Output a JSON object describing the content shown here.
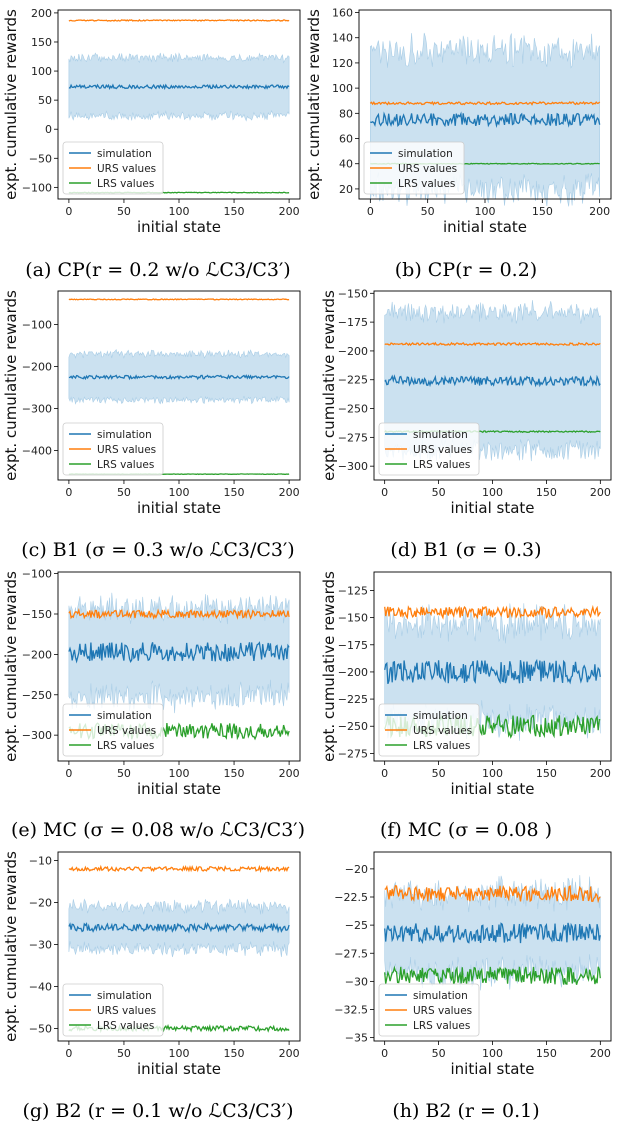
{
  "colors": {
    "simulation": "#1f77b4",
    "urs": "#ff7f0e",
    "lrs": "#2ca02c",
    "band": "#a9cde6"
  },
  "chart_data": [
    {
      "type": "line",
      "caption": "(a) CP(r = 0.2 w/o ℒC3/C3′)",
      "xlabel": "initial state",
      "ylabel": "expt. cumulative rewards",
      "xlim": [
        0,
        200
      ],
      "ylim": [
        -120,
        205
      ],
      "xticks": [
        0,
        50,
        100,
        150,
        200
      ],
      "yticks": [
        -100,
        -50,
        0,
        50,
        100,
        150,
        200
      ],
      "legend": "lower-left",
      "series": [
        {
          "name": "simulation",
          "mean": 73,
          "noise": 3,
          "band": 50,
          "bandNoise": 6
        },
        {
          "name": "URS values",
          "mean": 187,
          "noise": 1
        },
        {
          "name": "LRS values",
          "mean": -109,
          "noise": 0.6
        }
      ]
    },
    {
      "type": "line",
      "caption": "(b) CP(r = 0.2)",
      "xlabel": "initial state",
      "ylabel": "expt. cumulative rewards",
      "xlim": [
        0,
        200
      ],
      "ylim": [
        12,
        162
      ],
      "xticks": [
        0,
        50,
        100,
        150,
        200
      ],
      "yticks": [
        20,
        40,
        60,
        80,
        100,
        120,
        140,
        160
      ],
      "legend": "lower-left",
      "series": [
        {
          "name": "simulation",
          "mean": 75,
          "noise": 5,
          "band": 55,
          "bandNoise": 10
        },
        {
          "name": "URS values",
          "mean": 88,
          "noise": 1
        },
        {
          "name": "LRS values",
          "mean": 40,
          "noise": 0.3
        }
      ]
    },
    {
      "type": "line",
      "caption": "(c) B1 (σ = 0.3 w/o ℒC3/C3′)",
      "xlabel": "initial state",
      "ylabel": "expt. cumulative rewards",
      "xlim": [
        0,
        200
      ],
      "ylim": [
        -470,
        -20
      ],
      "xticks": [
        0,
        50,
        100,
        150,
        200
      ],
      "yticks": [
        -400,
        -300,
        -200,
        -100
      ],
      "legend": "lower-left",
      "series": [
        {
          "name": "simulation",
          "mean": -225,
          "noise": 4,
          "band": 55,
          "bandNoise": 7
        },
        {
          "name": "URS values",
          "mean": -40,
          "noise": 1
        },
        {
          "name": "LRS values",
          "mean": -456,
          "noise": 0.6
        }
      ]
    },
    {
      "type": "line",
      "caption": "(d) B1 (σ = 0.3)",
      "xlabel": "initial state",
      "ylabel": "expt. cumulative rewards",
      "xlim": [
        0,
        200
      ],
      "ylim": [
        -312,
        -148
      ],
      "xticks": [
        0,
        50,
        100,
        150,
        200
      ],
      "yticks": [
        -300,
        -275,
        -250,
        -225,
        -200,
        -175,
        -150
      ],
      "legend": "lower-left",
      "series": [
        {
          "name": "simulation",
          "mean": -226,
          "noise": 4,
          "band": 60,
          "bandNoise": 7
        },
        {
          "name": "URS values",
          "mean": -194,
          "noise": 1
        },
        {
          "name": "LRS values",
          "mean": -270,
          "noise": 0.6
        }
      ]
    },
    {
      "type": "line",
      "caption": "(e) MC (σ = 0.08 w/o ℒC3/C3′)",
      "xlabel": "initial state",
      "ylabel": "expt. cumulative rewards",
      "xlim": [
        0,
        200
      ],
      "ylim": [
        -332,
        -98
      ],
      "xticks": [
        0,
        50,
        100,
        150,
        200
      ],
      "yticks": [
        -300,
        -250,
        -200,
        -150,
        -100
      ],
      "legend": "lower-left",
      "series": [
        {
          "name": "simulation",
          "mean": -197,
          "noise": 12,
          "band": 55,
          "bandNoise": 10
        },
        {
          "name": "URS values",
          "mean": -150,
          "noise": 5
        },
        {
          "name": "LRS values",
          "mean": -295,
          "noise": 10
        }
      ]
    },
    {
      "type": "line",
      "caption": "(f) MC (σ = 0.08 )",
      "xlabel": "initial state",
      "ylabel": "expt. cumulative rewards",
      "xlim": [
        0,
        200
      ],
      "ylim": [
        -282,
        -108
      ],
      "xticks": [
        0,
        50,
        100,
        150,
        200
      ],
      "yticks": [
        -275,
        -250,
        -225,
        -200,
        -175,
        -150,
        -125
      ],
      "legend": "lower-left",
      "series": [
        {
          "name": "simulation",
          "mean": -200,
          "noise": 11,
          "band": 45,
          "bandNoise": 9
        },
        {
          "name": "URS values",
          "mean": -145,
          "noise": 5
        },
        {
          "name": "LRS values",
          "mean": -250,
          "noise": 10
        }
      ]
    },
    {
      "type": "line",
      "caption": "(g) B2 (r = 0.1 w/o ℒC3/C3′)",
      "xlabel": "initial state",
      "ylabel": "expt. cumulative rewards",
      "xlim": [
        0,
        200
      ],
      "ylim": [
        -53,
        -8
      ],
      "xticks": [
        0,
        50,
        100,
        150,
        200
      ],
      "yticks": [
        -50,
        -40,
        -30,
        -20,
        -10
      ],
      "legend": "lower-left",
      "series": [
        {
          "name": "simulation",
          "mean": -26,
          "noise": 0.9,
          "band": 5,
          "bandNoise": 1.2
        },
        {
          "name": "URS values",
          "mean": -12,
          "noise": 0.5
        },
        {
          "name": "LRS values",
          "mean": -50,
          "noise": 0.6
        }
      ]
    },
    {
      "type": "line",
      "caption": "(h) B2 (r = 0.1)",
      "xlabel": "initial state",
      "ylabel": "",
      "xlim": [
        0,
        200
      ],
      "ylim": [
        -35.3,
        -18.5
      ],
      "xticks": [
        0,
        50,
        100,
        150,
        200
      ],
      "yticks": [
        -35.0,
        -32.5,
        -30.0,
        -27.5,
        -25.0,
        -22.5,
        -20.0
      ],
      "legend": "lower-left",
      "series": [
        {
          "name": "simulation",
          "mean": -25.7,
          "noise": 0.9,
          "band": 3.5,
          "bandNoise": 0.9
        },
        {
          "name": "URS values",
          "mean": -22.2,
          "noise": 0.7
        },
        {
          "name": "LRS values",
          "mean": -29.5,
          "noise": 0.8
        }
      ]
    }
  ]
}
